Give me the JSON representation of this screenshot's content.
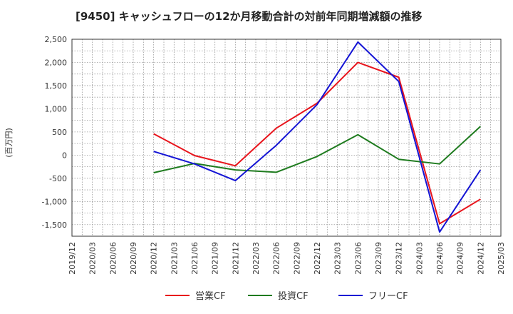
{
  "chart_data": {
    "type": "line",
    "title": "[9450]  キャッシュフローの12か月移動合計の対前年同期増減額の推移",
    "ylabel": "(百万円)",
    "xlabel": "",
    "ylim": [
      -1750,
      2500
    ],
    "yticks": [
      2500,
      2000,
      1500,
      1000,
      500,
      0,
      -500,
      -1000,
      -1500
    ],
    "ytick_labels": [
      "2,500",
      "2,000",
      "1,500",
      "1,000",
      "500",
      "0",
      "-500",
      "-1,000",
      "-1,500"
    ],
    "x_ticks": [
      "2019/12",
      "2020/03",
      "2020/06",
      "2020/09",
      "2020/12",
      "2021/03",
      "2021/06",
      "2021/09",
      "2021/12",
      "2022/03",
      "2022/06",
      "2022/09",
      "2022/12",
      "2023/03",
      "2023/06",
      "2023/09",
      "2023/12",
      "2024/03",
      "2024/06",
      "2024/09",
      "2024/12",
      "2025/03"
    ],
    "grid": true,
    "legend_position": "bottom",
    "series": [
      {
        "name": "営業CF",
        "color": "#e8141c",
        "x": [
          "2020/12",
          "2021/06",
          "2021/12",
          "2022/06",
          "2022/12",
          "2023/06",
          "2023/12",
          "2024/06",
          "2024/12"
        ],
        "values": [
          460,
          -10,
          -230,
          580,
          1120,
          2000,
          1680,
          -1480,
          -950
        ]
      },
      {
        "name": "投資CF",
        "color": "#1e7b1e",
        "x": [
          "2020/12",
          "2021/06",
          "2021/12",
          "2022/06",
          "2022/12",
          "2023/06",
          "2023/12",
          "2024/06",
          "2024/12"
        ],
        "values": [
          -380,
          -180,
          -320,
          -370,
          -30,
          440,
          -90,
          -190,
          620
        ]
      },
      {
        "name": "フリーCF",
        "color": "#1414d4",
        "x": [
          "2020/12",
          "2021/06",
          "2021/12",
          "2022/06",
          "2022/12",
          "2023/06",
          "2023/12",
          "2024/06",
          "2024/12"
        ],
        "values": [
          80,
          -190,
          -550,
          210,
          1090,
          2440,
          1590,
          -1660,
          -320
        ]
      }
    ]
  }
}
